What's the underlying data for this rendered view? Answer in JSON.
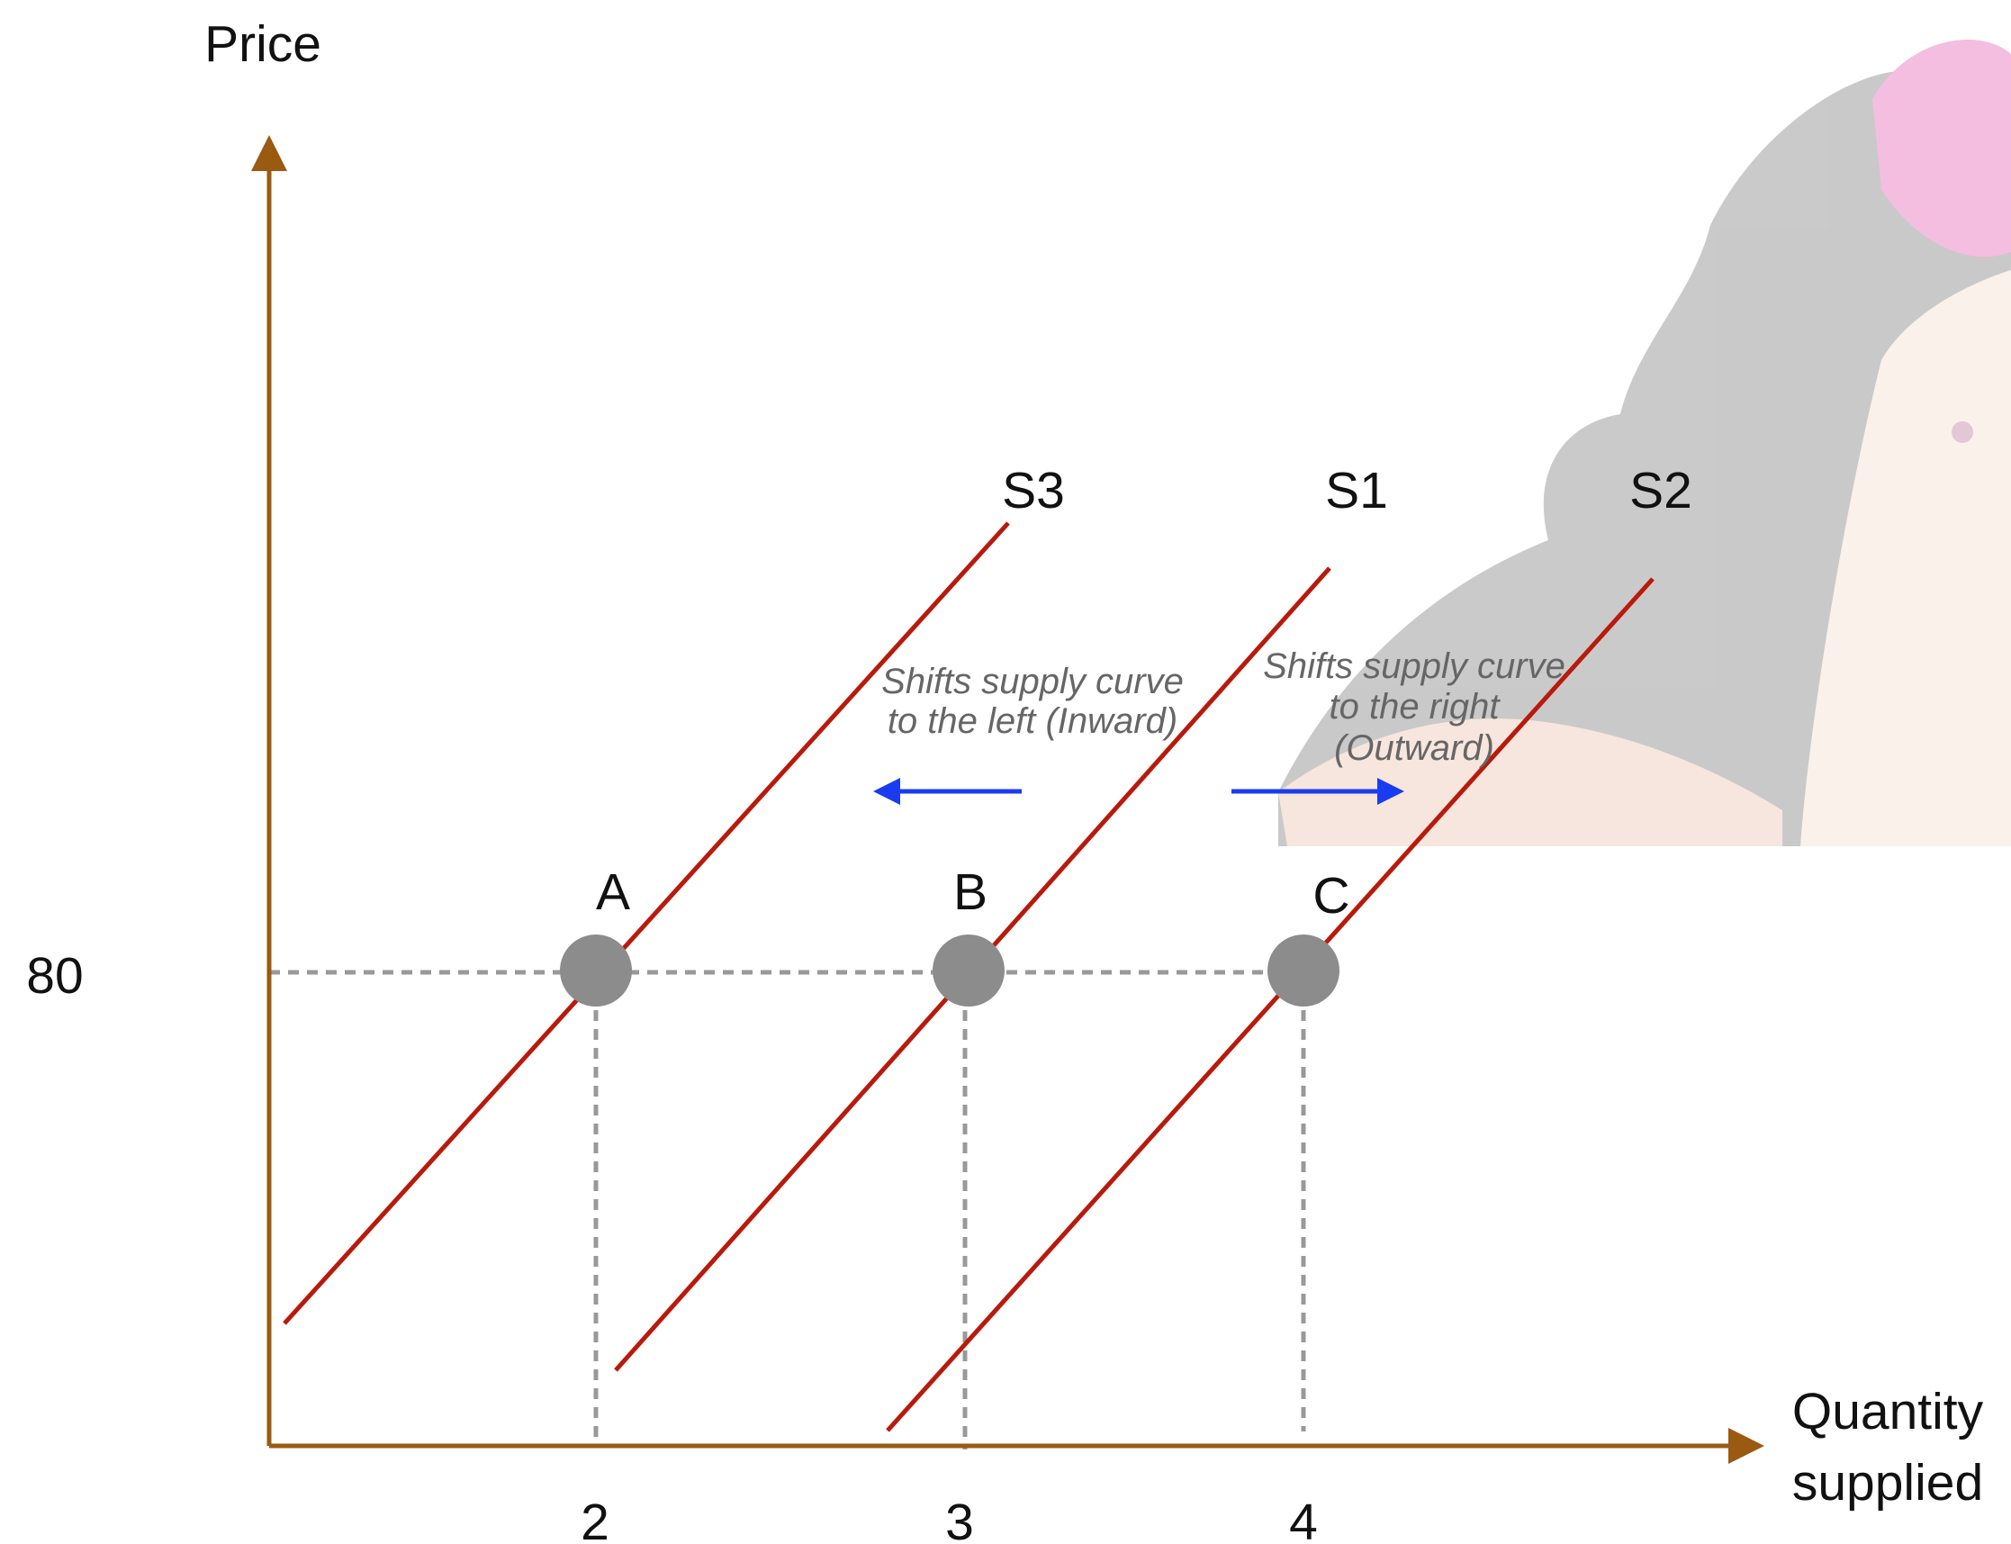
{
  "axes": {
    "y_label": "Price",
    "x_label_lines": [
      "Quantity",
      "supplied"
    ],
    "y_ticks": [
      80
    ],
    "x_ticks": [
      2,
      3,
      4
    ]
  },
  "curves": [
    {
      "label": "S3"
    },
    {
      "label": "S1"
    },
    {
      "label": "S2"
    }
  ],
  "points": [
    {
      "label": "A"
    },
    {
      "label": "B"
    },
    {
      "label": "C"
    }
  ],
  "annotations": {
    "left_shift": [
      "Shifts supply curve",
      "to the left (Inward)"
    ],
    "right_shift": [
      "Shifts supply curve",
      "to the right",
      "(Outward)"
    ]
  }
}
